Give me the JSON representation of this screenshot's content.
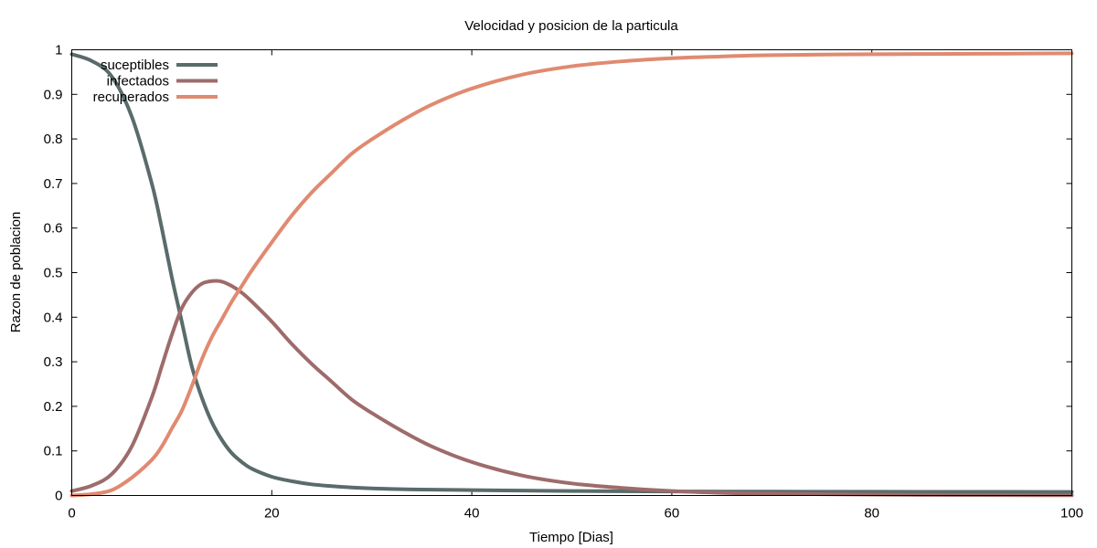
{
  "chart_data": {
    "type": "line",
    "title": "Velocidad y posicion de la particula",
    "xlabel": "Tiempo [Dias]",
    "ylabel": "Razon de poblacion",
    "xlim": [
      0,
      100
    ],
    "ylim": [
      0,
      1
    ],
    "xticks": [
      0,
      20,
      40,
      60,
      80,
      100
    ],
    "yticks": [
      0,
      0.1,
      0.2,
      0.3,
      0.4,
      0.5,
      0.6,
      0.7,
      0.8,
      0.9,
      1
    ],
    "grid": false,
    "legend_position": "top-left",
    "x": [
      0,
      2,
      4,
      6,
      8,
      9,
      10,
      11,
      12,
      13,
      14,
      15,
      16,
      17,
      18,
      20,
      22,
      24,
      26,
      28,
      30,
      33,
      36,
      40,
      45,
      50,
      55,
      60,
      65,
      70,
      80,
      90,
      100
    ],
    "series": [
      {
        "name": "suceptibles",
        "color": "#5a6b6b",
        "values": [
          0.99,
          0.975,
          0.94,
          0.85,
          0.7,
          0.6,
          0.49,
          0.39,
          0.29,
          0.22,
          0.165,
          0.125,
          0.095,
          0.075,
          0.06,
          0.042,
          0.032,
          0.025,
          0.021,
          0.018,
          0.016,
          0.014,
          0.013,
          0.012,
          0.011,
          0.01,
          0.0095,
          0.009,
          0.0088,
          0.0086,
          0.0084,
          0.0082,
          0.008
        ]
      },
      {
        "name": "infectados",
        "color": "#9e6b6b",
        "values": [
          0.01,
          0.022,
          0.048,
          0.11,
          0.22,
          0.29,
          0.36,
          0.42,
          0.455,
          0.475,
          0.481,
          0.48,
          0.47,
          0.455,
          0.435,
          0.39,
          0.34,
          0.295,
          0.255,
          0.215,
          0.185,
          0.145,
          0.11,
          0.075,
          0.045,
          0.027,
          0.017,
          0.01,
          0.006,
          0.004,
          0.002,
          0.001,
          0.0005
        ]
      },
      {
        "name": "recuperados",
        "color": "#e08a70",
        "values": [
          0.0,
          0.003,
          0.012,
          0.04,
          0.08,
          0.11,
          0.15,
          0.19,
          0.245,
          0.305,
          0.355,
          0.395,
          0.435,
          0.47,
          0.505,
          0.568,
          0.628,
          0.68,
          0.724,
          0.767,
          0.799,
          0.841,
          0.877,
          0.913,
          0.944,
          0.963,
          0.974,
          0.981,
          0.985,
          0.988,
          0.99,
          0.991,
          0.992
        ]
      }
    ]
  }
}
